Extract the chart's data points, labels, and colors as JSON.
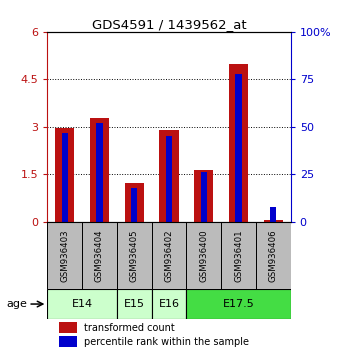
{
  "title": "GDS4591 / 1439562_at",
  "samples": [
    "GSM936403",
    "GSM936404",
    "GSM936405",
    "GSM936402",
    "GSM936400",
    "GSM936401",
    "GSM936406"
  ],
  "transformed_count": [
    2.95,
    3.28,
    1.22,
    2.9,
    1.65,
    5.0,
    0.07
  ],
  "percentile_rank": [
    47,
    52,
    18,
    45,
    26,
    78,
    8
  ],
  "ylim_left": [
    0,
    6
  ],
  "ylim_right": [
    0,
    100
  ],
  "yticks_left": [
    0,
    1.5,
    3,
    4.5,
    6
  ],
  "ytick_labels_left": [
    "0",
    "1.5",
    "3",
    "4.5",
    "6"
  ],
  "yticks_right": [
    0,
    25,
    50,
    75,
    100
  ],
  "ytick_labels_right": [
    "0",
    "25",
    "50",
    "75",
    "100%"
  ],
  "bar_color_red": "#bb1111",
  "bar_color_blue": "#0000cc",
  "age_groups": [
    {
      "label": "E14",
      "indices": [
        0,
        1
      ],
      "color": "#ccffcc"
    },
    {
      "label": "E15",
      "indices": [
        2
      ],
      "color": "#ccffcc"
    },
    {
      "label": "E16",
      "indices": [
        3
      ],
      "color": "#ccffcc"
    },
    {
      "label": "E17.5",
      "indices": [
        4,
        5,
        6
      ],
      "color": "#44dd44"
    }
  ],
  "legend_red_label": "transformed count",
  "legend_blue_label": "percentile rank within the sample",
  "age_label": "age",
  "sample_box_color": "#bbbbbb"
}
